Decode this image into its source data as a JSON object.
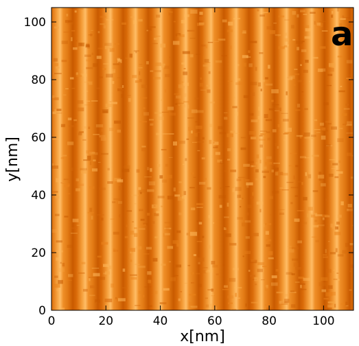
{
  "panel_label": "a",
  "axes": {
    "x": {
      "label": "x[nm]",
      "ticks": [
        "0",
        "20",
        "40",
        "60",
        "80",
        "100"
      ],
      "tick_values": [
        0,
        20,
        40,
        60,
        80,
        100
      ],
      "range": [
        0,
        111
      ]
    },
    "y": {
      "label": "y[nm]",
      "ticks": [
        "0",
        "20",
        "40",
        "60",
        "80",
        "100"
      ],
      "tick_values": [
        0,
        20,
        40,
        60,
        80,
        100
      ],
      "range": [
        0,
        105
      ]
    }
  },
  "image": {
    "description_colors": {
      "dark": "#c85a00",
      "mid": "#e9811a",
      "light": "#f7a644",
      "bright": "#ffc070"
    },
    "stripe_period_nm": 9.25,
    "stripe_count": 12
  }
}
